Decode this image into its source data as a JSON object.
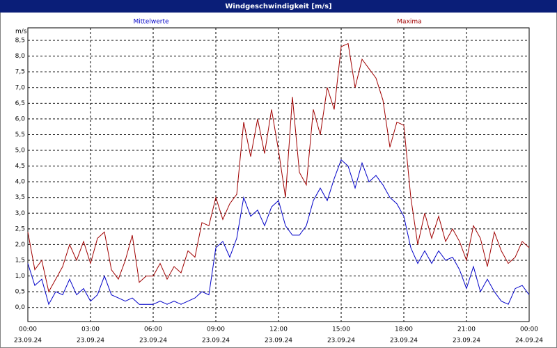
{
  "chart_data": {
    "type": "line",
    "title": "Windgeschwindigkeit [m/s]",
    "y_unit": "m/s",
    "x": [
      0,
      20,
      40,
      60,
      80,
      100,
      120,
      140,
      160,
      180,
      200,
      220,
      240,
      260,
      280,
      300,
      320,
      340,
      360,
      380,
      400,
      420,
      440,
      460,
      480,
      500,
      520,
      540,
      560,
      580,
      600,
      620,
      640,
      660,
      680,
      700,
      720,
      740,
      760,
      780,
      800,
      820,
      840,
      860,
      880,
      900,
      920,
      940,
      960,
      980,
      1000,
      1020,
      1040,
      1060,
      1080,
      1100,
      1120,
      1140,
      1160,
      1180,
      1200,
      1220,
      1240,
      1260,
      1280,
      1300,
      1320,
      1340,
      1360,
      1380,
      1400,
      1420,
      1440
    ],
    "series": [
      {
        "name": "Mittelwerte",
        "color": "#0000c8",
        "values": [
          1.4,
          0.7,
          0.9,
          0.1,
          0.5,
          0.4,
          0.9,
          0.4,
          0.6,
          0.2,
          0.4,
          1.0,
          0.4,
          0.3,
          0.2,
          0.3,
          0.1,
          0.1,
          0.1,
          0.2,
          0.1,
          0.2,
          0.1,
          0.2,
          0.3,
          0.5,
          0.4,
          1.9,
          2.1,
          1.6,
          2.2,
          3.5,
          2.9,
          3.1,
          2.6,
          3.2,
          3.4,
          2.6,
          2.3,
          2.3,
          2.6,
          3.4,
          3.8,
          3.4,
          4.1,
          4.7,
          4.5,
          3.8,
          4.6,
          4.0,
          4.2,
          3.9,
          3.5,
          3.3,
          2.9,
          1.9,
          1.4,
          1.8,
          1.4,
          1.8,
          1.5,
          1.6,
          1.2,
          0.6,
          1.3,
          0.5,
          0.9,
          0.5,
          0.2,
          0.1,
          0.6,
          0.7,
          0.4
        ]
      },
      {
        "name": "Maxima",
        "color": "#a00000",
        "values": [
          2.4,
          1.2,
          1.5,
          0.5,
          0.9,
          1.3,
          2.0,
          1.5,
          2.1,
          1.4,
          2.2,
          2.4,
          1.2,
          0.9,
          1.5,
          2.3,
          0.8,
          1.0,
          1.0,
          1.4,
          0.9,
          1.3,
          1.1,
          1.8,
          1.6,
          2.7,
          2.6,
          3.5,
          2.8,
          3.3,
          3.6,
          5.9,
          4.8,
          6.0,
          4.9,
          6.3,
          5.0,
          3.5,
          6.7,
          4.3,
          3.9,
          6.3,
          5.5,
          7.0,
          6.3,
          8.3,
          8.4,
          7.0,
          7.9,
          7.6,
          7.3,
          6.6,
          5.1,
          5.9,
          5.8,
          3.5,
          2.0,
          3.0,
          2.2,
          2.9,
          2.1,
          2.5,
          2.1,
          1.5,
          2.6,
          2.2,
          1.3,
          2.4,
          1.8,
          1.4,
          1.6,
          2.1,
          1.9
        ]
      }
    ],
    "xlim": [
      0,
      1440
    ],
    "xticks": [
      {
        "value": 0,
        "label": "00:00",
        "date": "23.09.24"
      },
      {
        "value": 180,
        "label": "03:00",
        "date": "23.09.24"
      },
      {
        "value": 360,
        "label": "06:00",
        "date": "23.09.24"
      },
      {
        "value": 540,
        "label": "09:00",
        "date": "23.09.24"
      },
      {
        "value": 720,
        "label": "12:00",
        "date": "23.09.24"
      },
      {
        "value": 900,
        "label": "15:00",
        "date": "23.09.24"
      },
      {
        "value": 1080,
        "label": "18:00",
        "date": "23.09.24"
      },
      {
        "value": 1260,
        "label": "21:00",
        "date": "23.09.24"
      },
      {
        "value": 1440,
        "label": "00:00",
        "date": "24.09.24"
      }
    ],
    "ylim": [
      -0.45,
      8.9
    ],
    "yticks": [
      {
        "value": 0,
        "label": "0,0"
      },
      {
        "value": 0.5,
        "label": "0,5"
      },
      {
        "value": 1,
        "label": "1,0"
      },
      {
        "value": 1.5,
        "label": "1,5"
      },
      {
        "value": 2,
        "label": "2,0"
      },
      {
        "value": 2.5,
        "label": "2,5"
      },
      {
        "value": 3,
        "label": "3,0"
      },
      {
        "value": 3.5,
        "label": "3,5"
      },
      {
        "value": 4,
        "label": "4,0"
      },
      {
        "value": 4.5,
        "label": "4,5"
      },
      {
        "value": 5,
        "label": "5,0"
      },
      {
        "value": 5.5,
        "label": "5,5"
      },
      {
        "value": 6,
        "label": "6,0"
      },
      {
        "value": 6.5,
        "label": "6,5"
      },
      {
        "value": 7,
        "label": "7,0"
      },
      {
        "value": 7.5,
        "label": "7,5"
      },
      {
        "value": 8,
        "label": "8,0"
      },
      {
        "value": 8.5,
        "label": "8,5"
      }
    ],
    "grid": true
  }
}
